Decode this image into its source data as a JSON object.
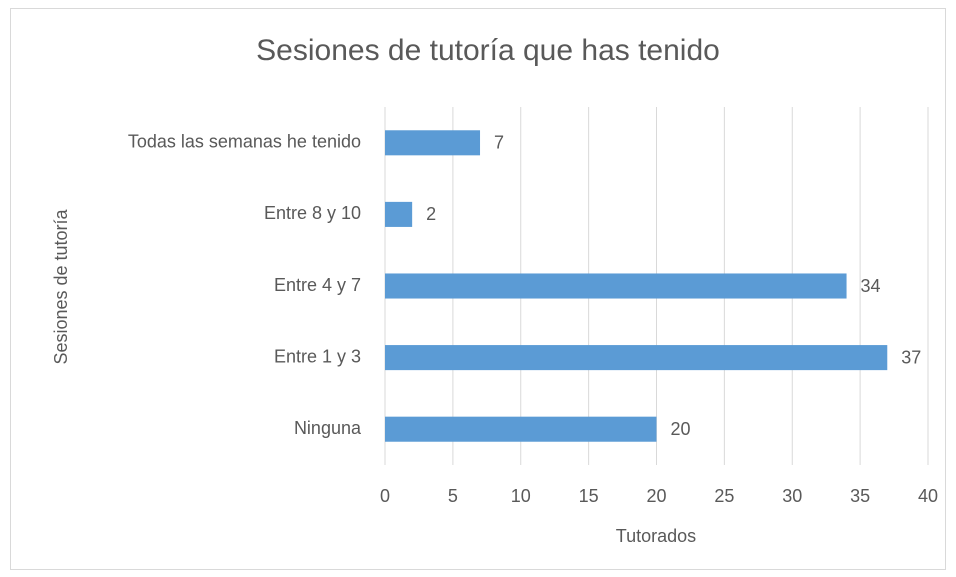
{
  "chart_data": {
    "type": "barh",
    "title": "Sesiones de tutoría que has tenido",
    "xlabel": "Tutorados",
    "ylabel": "Sesiones  de tutoría",
    "categories": [
      "Ninguna",
      "Entre 1 y 3",
      "Entre 4 y 7",
      "Entre 8 y 10",
      "Todas las semanas he tenido"
    ],
    "values": [
      20,
      37,
      34,
      2,
      7
    ],
    "color": "#5b9bd5",
    "xlim": [
      0,
      40
    ],
    "xticks": [
      0,
      5,
      10,
      15,
      20,
      25,
      30,
      35,
      40
    ],
    "grid": true
  }
}
